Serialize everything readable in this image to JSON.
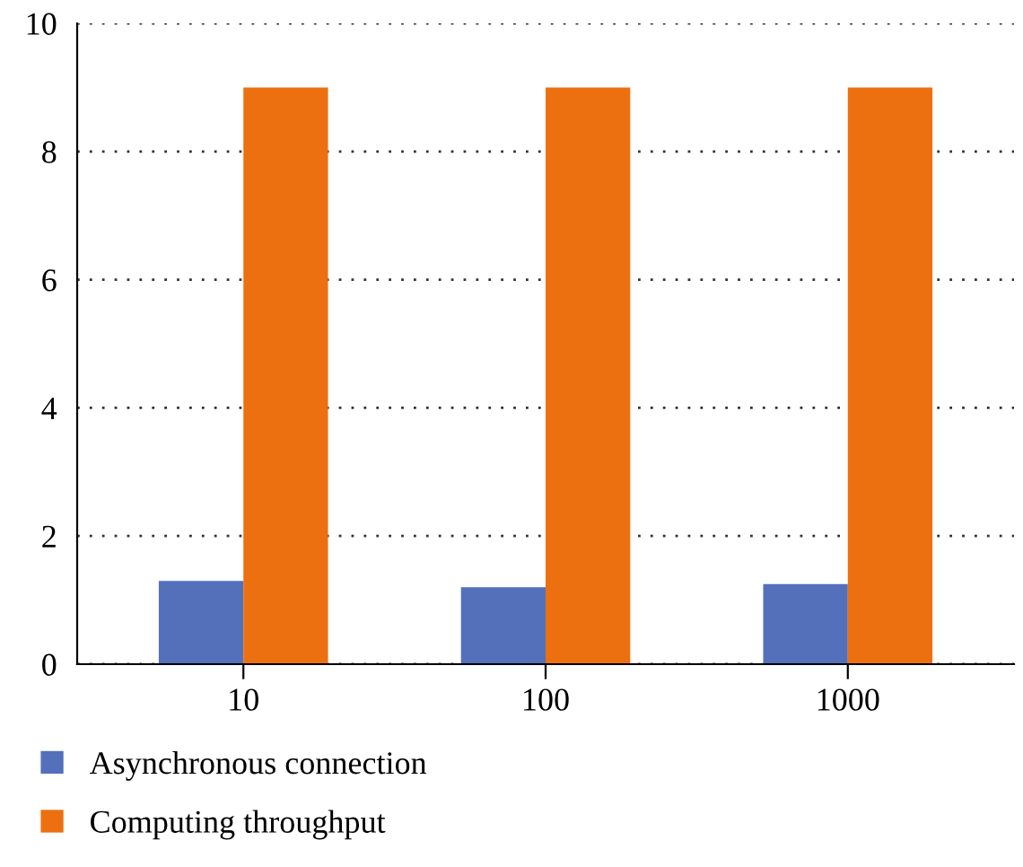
{
  "chart_data": {
    "type": "bar",
    "categories": [
      "10",
      "100",
      "1000"
    ],
    "series": [
      {
        "name": "Asynchronous connection",
        "color": "#5470bb",
        "values": [
          1.3,
          1.2,
          1.25
        ]
      },
      {
        "name": "Computing throughput",
        "color": "#ec7010",
        "values": [
          9,
          9,
          9
        ]
      }
    ],
    "ylim": [
      0,
      10
    ],
    "yticks": [
      0,
      2,
      4,
      6,
      8,
      10
    ],
    "grid": "y",
    "legend": "bottom left"
  }
}
